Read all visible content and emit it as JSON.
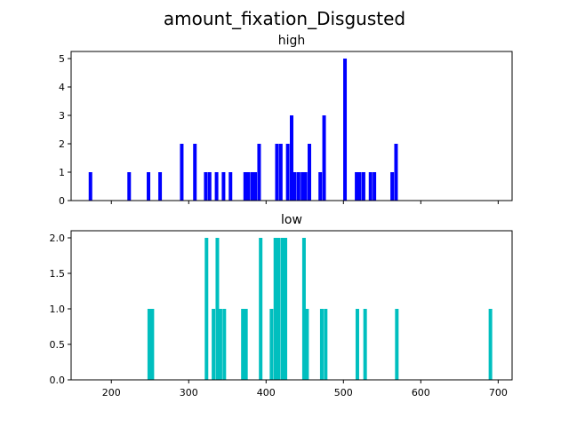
{
  "figure": {
    "suptitle": "amount_fixation_Disgusted"
  },
  "chart_data": [
    {
      "type": "bar",
      "title": "high",
      "xlabel": "",
      "ylabel": "",
      "xlim": [
        148,
        718
      ],
      "ylim": [
        0,
        5.25
      ],
      "color": "#0000ff",
      "bin_width": 4.6,
      "x_ticks": [
        200,
        300,
        400,
        500,
        600,
        700
      ],
      "y_ticks": [
        0,
        1,
        2,
        3,
        4,
        5
      ],
      "show_x_tick_labels": false,
      "bins": [
        {
          "x": 173,
          "value": 1
        },
        {
          "x": 223,
          "value": 1
        },
        {
          "x": 248,
          "value": 1
        },
        {
          "x": 263,
          "value": 1
        },
        {
          "x": 291,
          "value": 2
        },
        {
          "x": 308,
          "value": 2
        },
        {
          "x": 322,
          "value": 1
        },
        {
          "x": 327,
          "value": 1
        },
        {
          "x": 336,
          "value": 1
        },
        {
          "x": 345,
          "value": 1
        },
        {
          "x": 354,
          "value": 1
        },
        {
          "x": 373,
          "value": 1
        },
        {
          "x": 377,
          "value": 1
        },
        {
          "x": 382,
          "value": 1
        },
        {
          "x": 386,
          "value": 1
        },
        {
          "x": 391,
          "value": 2
        },
        {
          "x": 414,
          "value": 2
        },
        {
          "x": 419,
          "value": 2
        },
        {
          "x": 428,
          "value": 2
        },
        {
          "x": 433,
          "value": 3
        },
        {
          "x": 437,
          "value": 1
        },
        {
          "x": 442,
          "value": 1
        },
        {
          "x": 447,
          "value": 1
        },
        {
          "x": 451,
          "value": 1
        },
        {
          "x": 456,
          "value": 2
        },
        {
          "x": 470,
          "value": 1
        },
        {
          "x": 475,
          "value": 3
        },
        {
          "x": 502,
          "value": 5
        },
        {
          "x": 517,
          "value": 1
        },
        {
          "x": 521,
          "value": 1
        },
        {
          "x": 526,
          "value": 1
        },
        {
          "x": 535,
          "value": 1
        },
        {
          "x": 540,
          "value": 1
        },
        {
          "x": 563,
          "value": 1
        },
        {
          "x": 568,
          "value": 2
        }
      ]
    },
    {
      "type": "bar",
      "title": "low",
      "xlabel": "",
      "ylabel": "",
      "xlim": [
        148,
        718
      ],
      "ylim": [
        0,
        2.1
      ],
      "color": "#00bfbf",
      "bin_width": 4.6,
      "x_ticks": [
        200,
        300,
        400,
        500,
        600,
        700
      ],
      "x_tick_labels": [
        "200",
        "300",
        "400",
        "500",
        "600",
        "700"
      ],
      "y_ticks": [
        0,
        0.5,
        1,
        1.5,
        2
      ],
      "y_tick_labels": [
        "0.0",
        "0.5",
        "1.0",
        "1.5",
        "2.0"
      ],
      "show_x_tick_labels": true,
      "bins": [
        {
          "x": 249,
          "value": 1
        },
        {
          "x": 253,
          "value": 1
        },
        {
          "x": 323,
          "value": 2
        },
        {
          "x": 332,
          "value": 1
        },
        {
          "x": 337,
          "value": 2
        },
        {
          "x": 341,
          "value": 1
        },
        {
          "x": 346,
          "value": 1
        },
        {
          "x": 370,
          "value": 1
        },
        {
          "x": 374,
          "value": 1
        },
        {
          "x": 393,
          "value": 2
        },
        {
          "x": 407,
          "value": 1
        },
        {
          "x": 412,
          "value": 2
        },
        {
          "x": 416,
          "value": 2
        },
        {
          "x": 421,
          "value": 2
        },
        {
          "x": 425,
          "value": 2
        },
        {
          "x": 449,
          "value": 2
        },
        {
          "x": 453,
          "value": 1
        },
        {
          "x": 472,
          "value": 1
        },
        {
          "x": 477,
          "value": 1
        },
        {
          "x": 518,
          "value": 1
        },
        {
          "x": 528,
          "value": 1
        },
        {
          "x": 569,
          "value": 1
        },
        {
          "x": 690,
          "value": 1
        }
      ]
    }
  ]
}
